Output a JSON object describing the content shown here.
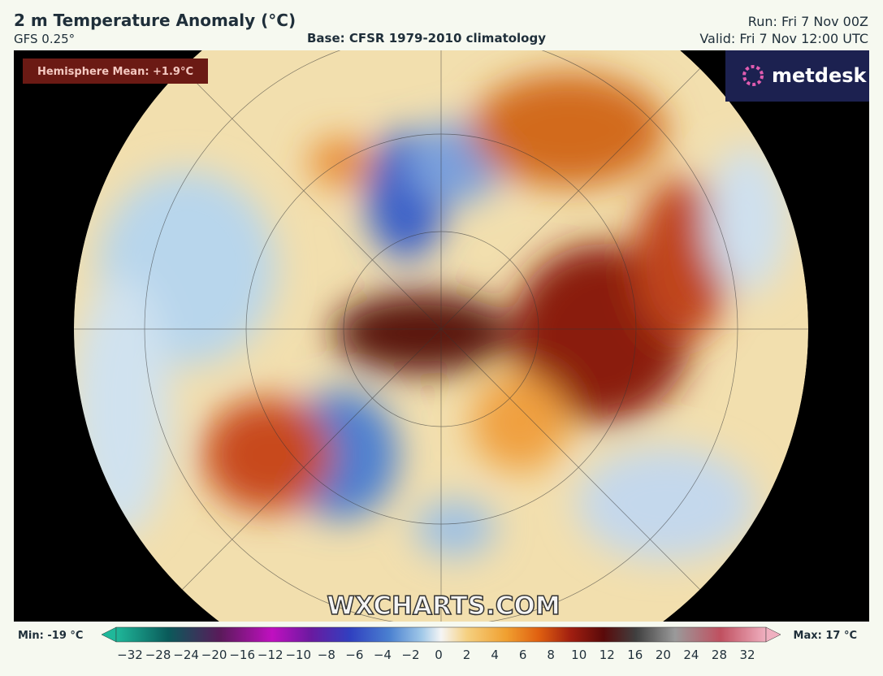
{
  "header": {
    "title": "2 m Temperature Anomaly (°C)",
    "model": "GFS 0.25°",
    "base": "Base: CFSR 1979-2010 climatology",
    "run": "Run: Fri 7 Nov 00Z",
    "valid": "Valid: Fri 7 Nov 12:00 UTC"
  },
  "map": {
    "hemisphere_mean": "Hemisphere Mean: +1.9°C",
    "logo": "metdesk",
    "watermark": "WXCHARTS.COM"
  },
  "colorbar": {
    "min_label": "Min: -19 °C",
    "max_label": "Max: 17 °C",
    "ticks": [
      "−32",
      "−28",
      "−24",
      "−20",
      "−16",
      "−12",
      "−10",
      "−8",
      "−6",
      "−4",
      "−2",
      "0",
      "2",
      "4",
      "6",
      "8",
      "10",
      "12",
      "16",
      "20",
      "24",
      "28",
      "32"
    ]
  }
}
